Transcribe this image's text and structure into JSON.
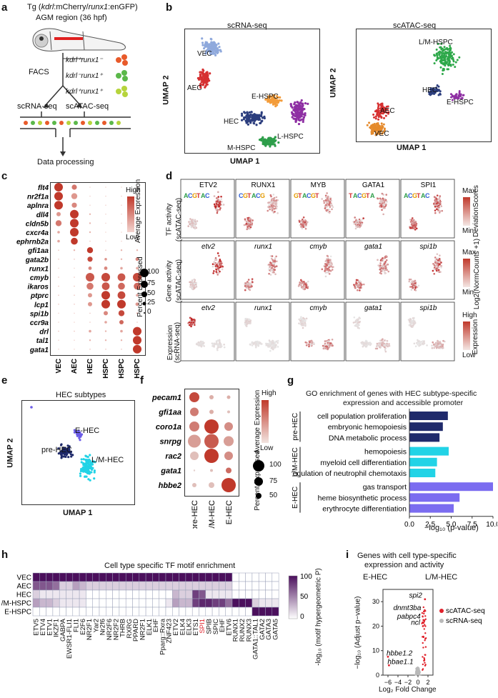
{
  "panel_labels": {
    "a": "a",
    "b": "b",
    "c": "c",
    "d": "d",
    "e": "e",
    "f": "f",
    "g": "g",
    "h": "h",
    "i": "i"
  },
  "panel_a": {
    "tg_line": "Tg (kdrl:mCherry/runx1:engFP)",
    "tg_prefix": "Tg (",
    "tg_name": "kdrl",
    "tg_middle": ":mCherry/",
    "tg_name2": "runx1",
    "tg_suffix": ":enGFP)",
    "agm": "AGM region (36 hpf)",
    "facs": "FACS",
    "pop1": "kdrl⁺runx1⁻",
    "pop2": "kdrl⁻runx1⁺",
    "pop3": "kdrl⁺runx1⁺",
    "scrna": "scRNA-seq",
    "scatac": "scATAC-seq",
    "processing": "Data processing"
  },
  "panel_b": {
    "title_left": "scRNA-seq",
    "title_right": "scATAC-seq",
    "umap1": "UMAP 1",
    "umap2": "UMAP 2",
    "left_clusters": [
      "VEC",
      "AEC",
      "E-HSPC",
      "HEC",
      "L-HSPC",
      "M-HSPC"
    ],
    "right_clusters": [
      "L/M-HSPC",
      "HEC",
      "E-HSPC",
      "AEC",
      "VEC"
    ]
  },
  "panel_c": {
    "genes": [
      "flt4",
      "nr2f1a",
      "aplnra",
      "dll4",
      "cldn5b",
      "cxcr4a",
      "ephrnb2a",
      "gfi1aa",
      "gata2b",
      "runx1",
      "cmyb",
      "ikaros",
      "ptprc",
      "lcp1",
      "spi1b",
      "ccr9a",
      "drl",
      "tal1",
      "gata1"
    ],
    "columns": [
      "VEC",
      "AEC",
      "HEC",
      "L-HSPC",
      "M-HSPC",
      "E-HSPC"
    ],
    "legend_expr_title": "Average Expression",
    "legend_high": "High",
    "legend_low": "Low",
    "legend_pct_title": "Percent Expressed",
    "legend_pct_values": [
      "100",
      "75",
      "50",
      "25",
      "0"
    ],
    "colors": {
      "high": "#c0392b",
      "low": "#f2d5d0"
    }
  },
  "panel_d": {
    "tfs": [
      "ETV2",
      "RUNX1",
      "MYB",
      "GATA1",
      "SPI1"
    ],
    "genes": [
      "etv2",
      "runx1",
      "cmyb",
      "gata1",
      "spi1b"
    ],
    "row1_label": "TF activity\n(scATAC-seq)",
    "row1_line1": "TF activity",
    "row1_line2": "(scATAC-seq)",
    "row2_line1": "Gene activity",
    "row2_line2": "(scATAC-seq)",
    "row3_line1": "Expression",
    "row3_line2": "(scRNA-seq)",
    "leg1_max": "Max",
    "leg1_min": "Min",
    "leg1_title": "DeviationScores",
    "leg2_max": "Max",
    "leg2_min": "Min",
    "leg2_title": "Log2(NormCounts +1)",
    "leg3_high": "High",
    "leg3_low": "Low",
    "leg3_title": "Expression"
  },
  "panel_e": {
    "title": "HEC subtypes",
    "umap1": "UMAP 1",
    "umap2": "UMAP 2",
    "labels": [
      "E-HEC",
      "pre-HEC",
      "L/M-HEC"
    ]
  },
  "panel_f": {
    "genes": [
      "pecam1",
      "gfi1aa",
      "coro1a",
      "snrpg",
      "rac2",
      "gata1",
      "hbbe2"
    ],
    "columns": [
      "pre-HEC",
      "L/M-HEC",
      "E-HEC"
    ],
    "legend_expr_title": "Average Expression",
    "legend_high": "High",
    "legend_low": "Low",
    "legend_pct_title": "Percent Expressed",
    "legend_pct_values": [
      "100",
      "75",
      "50"
    ]
  },
  "chart_data": [
    {
      "type": "bar",
      "title": "GO enrichment of genes with HEC subtype-specific expression and accessible promoter",
      "title_line1": "GO enrichment of genes with HEC subtype-specific",
      "title_line2": "expression and accessible promoter",
      "categories": [
        "cell population proliferation",
        "embryonic hemopoiesis",
        "DNA metabolic process",
        "hemopoiesis",
        "myeloid cell differentiation",
        "regulation of neutrophil chemotaxis",
        "gas transport",
        "heme biosynthetic process",
        "erythrocyte differentiation"
      ],
      "values": [
        4.6,
        4.0,
        3.6,
        4.7,
        3.3,
        3.1,
        10.0,
        6.0,
        5.3
      ],
      "groups": [
        "pre-HEC",
        "pre-HEC",
        "pre-HEC",
        "L/M-HEC",
        "L/M-HEC",
        "L/M-HEC",
        "E-HEC",
        "E-HEC",
        "E-HEC"
      ],
      "group_labels": [
        "pre-HEC",
        "L/M-HEC",
        "E-HEC"
      ],
      "group_colors": {
        "pre-HEC": "#1f2a6b",
        "L/M-HEC": "#22d3e6",
        "E-HEC": "#7b6cf0"
      },
      "xlabel": "−log₁₀ (p-value)",
      "xticks": [
        "0.0",
        "2.5",
        "5.0",
        "7.5",
        "10.0"
      ],
      "xlim": [
        0,
        10
      ]
    },
    {
      "type": "heatmap",
      "title": "Cell type specific TF motif enrichment",
      "rows": [
        "VEC",
        "AEC",
        "HEC",
        "L/M-HSPC",
        "E-HSPC"
      ],
      "columns": [
        "ETV5",
        "ETV4",
        "ETV1",
        "IKZF1",
        "GABPA",
        "EWSR1-FLI1",
        "FLI1",
        "E2F6",
        "NR2F1",
        "Yar2",
        "Nr2f6",
        "NR2F6",
        "NR2F2",
        "THRB",
        "RXRG",
        "PPARD",
        "NR2F1",
        "ELK1",
        "EHF",
        "Pparg::Rxra",
        "ZNF423",
        "ETV2",
        "ELK4",
        "ELK3",
        "ETS1",
        "SPI1",
        "SPIB",
        "SPIC",
        "EHF",
        "ETV6",
        "RUNX1",
        "RUNX2",
        "RUNX3",
        "GATA1::TAL1",
        "GATA2",
        "GATA3",
        "GATA5"
      ],
      "highlight_column": "SPI1",
      "values": [
        [
          100,
          100,
          100,
          100,
          100,
          100,
          100,
          100,
          100,
          100,
          100,
          100,
          100,
          100,
          100,
          100,
          100,
          100,
          100,
          100,
          100,
          100,
          100,
          100,
          100,
          100,
          100,
          100,
          100,
          100,
          0,
          0,
          0,
          0,
          0,
          0,
          0
        ],
        [
          70,
          70,
          70,
          60,
          20,
          20,
          40,
          30,
          20,
          20,
          20,
          20,
          20,
          20,
          20,
          20,
          20,
          20,
          20,
          20,
          20,
          20,
          20,
          20,
          20,
          20,
          20,
          20,
          20,
          20,
          0,
          0,
          0,
          0,
          0,
          0,
          0
        ],
        [
          20,
          10,
          10,
          10,
          10,
          10,
          10,
          10,
          0,
          0,
          0,
          0,
          0,
          0,
          0,
          0,
          0,
          0,
          0,
          0,
          0,
          30,
          20,
          20,
          80,
          70,
          10,
          10,
          10,
          10,
          0,
          0,
          0,
          0,
          0,
          0,
          0
        ],
        [
          40,
          30,
          30,
          20,
          10,
          10,
          10,
          10,
          0,
          0,
          0,
          0,
          0,
          0,
          0,
          0,
          0,
          0,
          0,
          0,
          10,
          40,
          30,
          30,
          80,
          90,
          90,
          80,
          80,
          60,
          100,
          100,
          100,
          20,
          10,
          10,
          10
        ],
        [
          0,
          0,
          0,
          0,
          0,
          0,
          0,
          0,
          0,
          0,
          0,
          0,
          0,
          0,
          0,
          0,
          0,
          0,
          0,
          0,
          0,
          0,
          0,
          0,
          0,
          0,
          0,
          0,
          0,
          0,
          0,
          0,
          0,
          100,
          100,
          100,
          100
        ]
      ],
      "colorbar_label": "-log₁₀ (motif hypergeometric P)",
      "colorbar_ticks": [
        "100",
        "50",
        "0"
      ],
      "colorscale": [
        "#ffffff",
        "#4b0f5c"
      ]
    },
    {
      "type": "scatter",
      "title": "Genes with cell type-specific expression and activity",
      "title_line1": "Genes with cell type-specific",
      "title_line2": "expression and activity",
      "xlabel": "Log₂ Fold Change",
      "ylabel": "−log₁₀ (Adjust p−value)",
      "xticks": [
        "−6",
        "−4",
        "−2",
        "0",
        "2"
      ],
      "yticks": [
        "0",
        "10",
        "20",
        "30"
      ],
      "xlim": [
        -7,
        3
      ],
      "ylim": [
        0,
        35
      ],
      "side_labels": [
        "E-HEC",
        "L/M-HEC"
      ],
      "legend": [
        {
          "name": "scATAC-seq",
          "color": "#e0202a"
        },
        {
          "name": "scRNA-seq",
          "color": "#b9b9b9"
        }
      ],
      "labeled_genes": [
        {
          "name": "spi2",
          "x": 1.4,
          "y": 31
        },
        {
          "name": "dnmt3ba",
          "x": 1.2,
          "y": 26
        },
        {
          "name": "pabpc4",
          "x": 1.1,
          "y": 22.5
        },
        {
          "name": "ncl",
          "x": 1.0,
          "y": 20
        },
        {
          "name": "hbbe1.2",
          "x": -6.0,
          "y": 7.5
        },
        {
          "name": "hbae1.1",
          "x": -5.8,
          "y": 4
        }
      ]
    }
  ]
}
